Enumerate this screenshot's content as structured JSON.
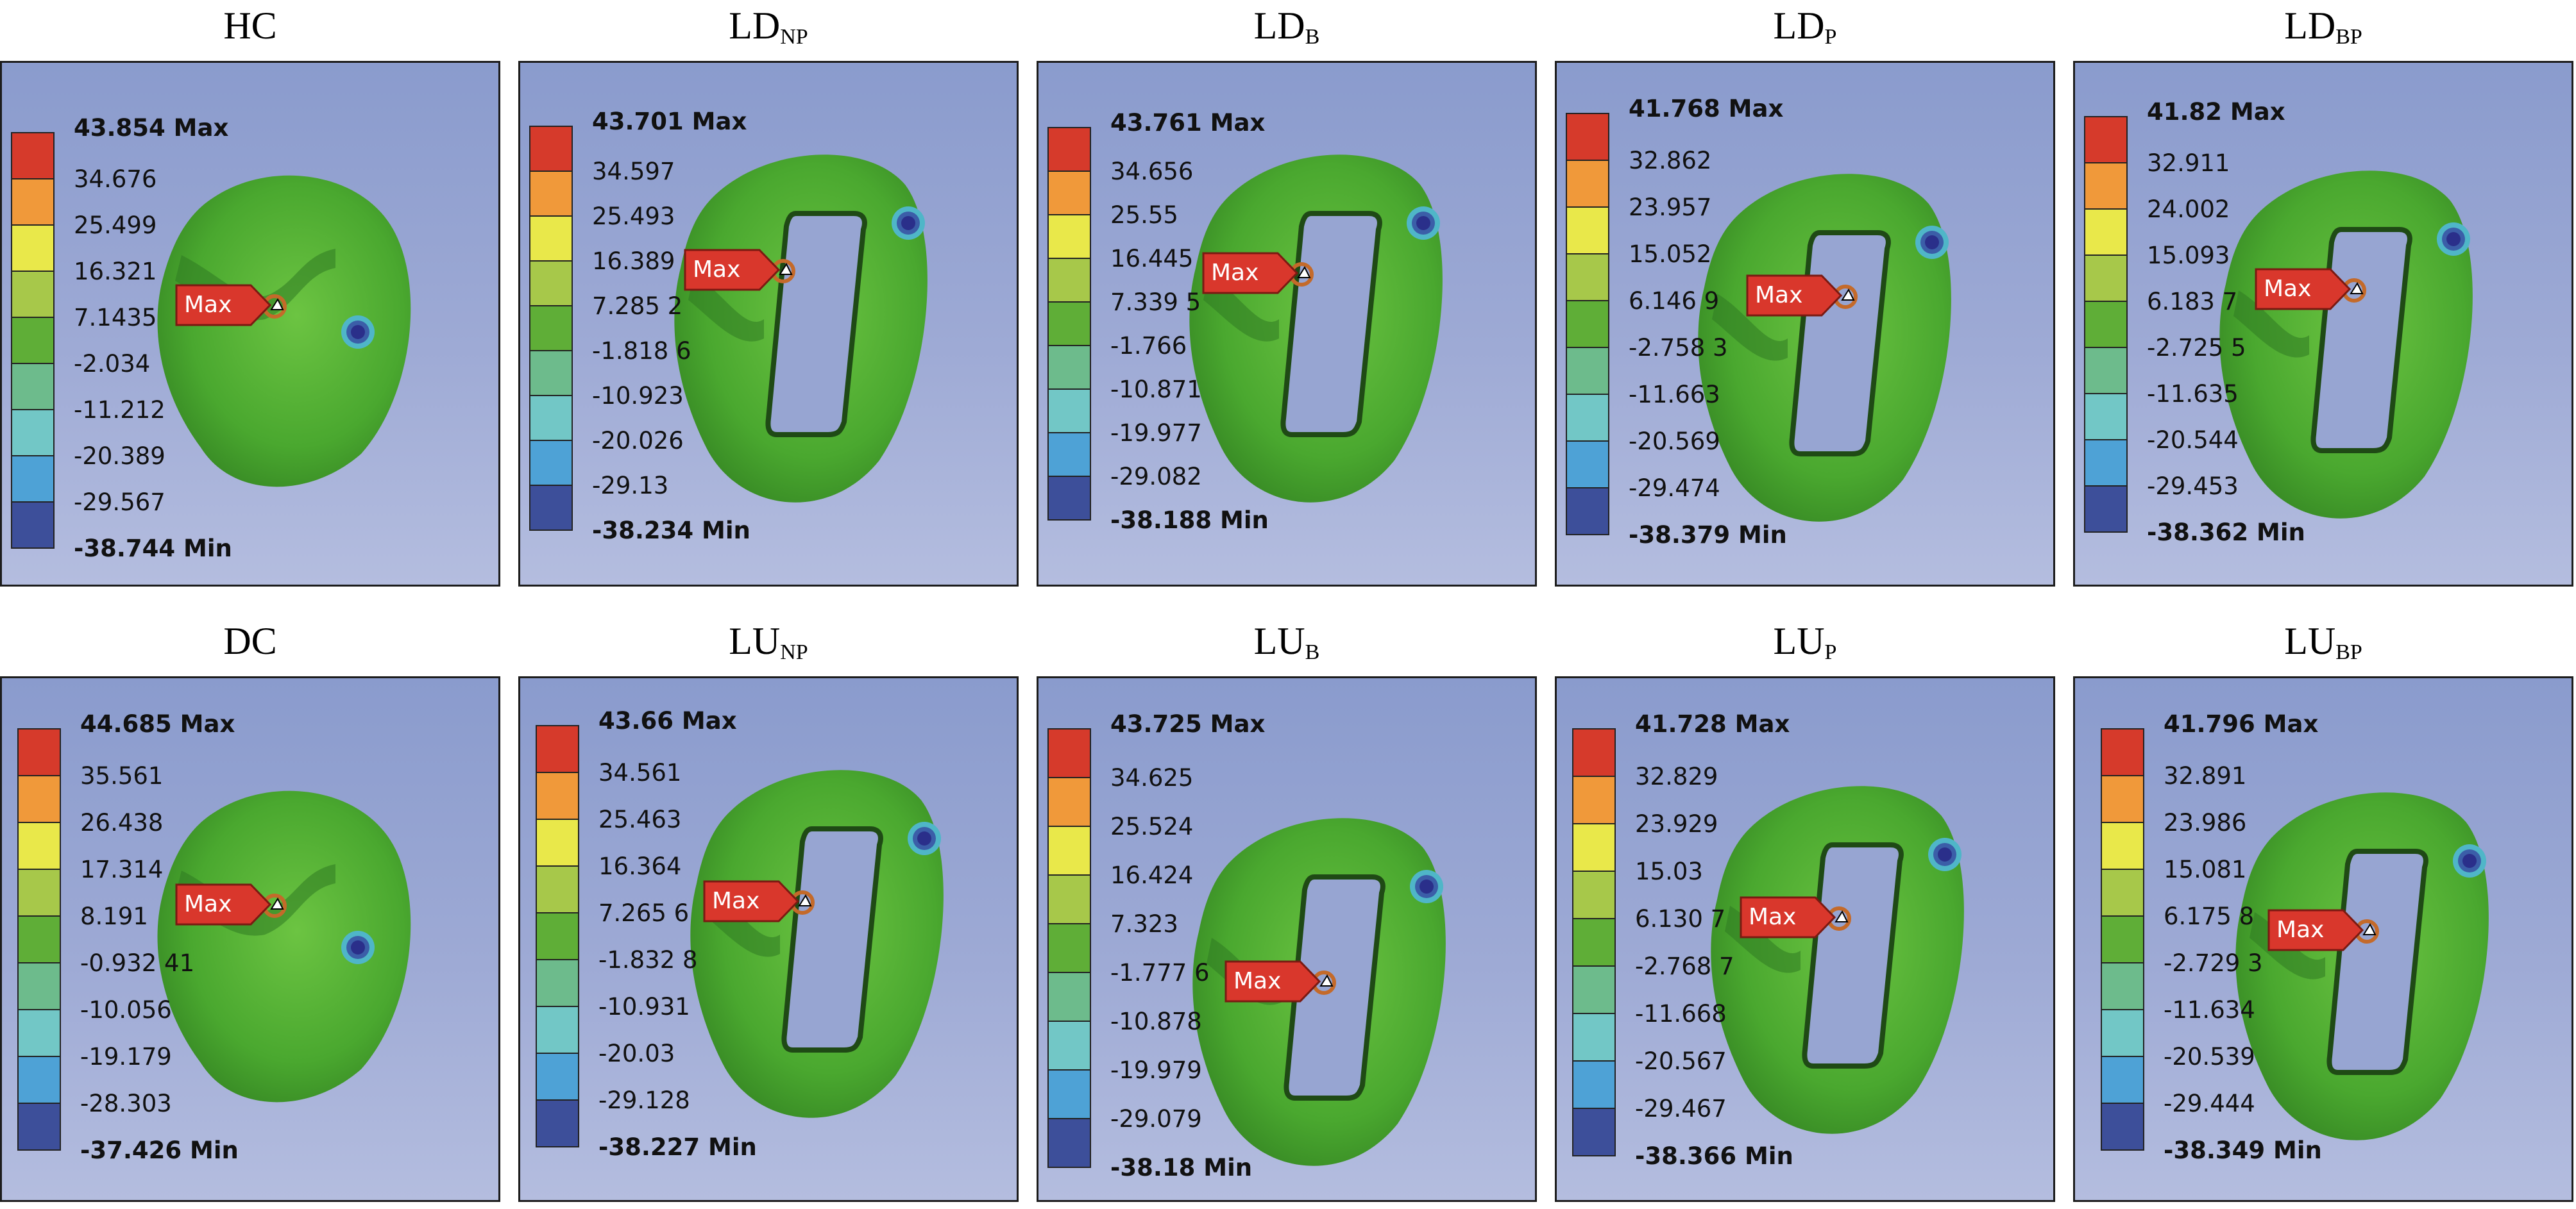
{
  "colors": {
    "panel_background": "#95a5d3",
    "body_green": "#4fae31",
    "max_tag": "#d9372c",
    "scale": [
      "#d63a2b",
      "#f0993a",
      "#e9e84a",
      "#a7c84a",
      "#5fae37",
      "#6dbb8c",
      "#72c7c6",
      "#4ea2d6",
      "#3d4f9a"
    ]
  },
  "panels": [
    {
      "title": "HC",
      "subscript": "",
      "hole": false,
      "legend": [
        "43.854 Max",
        "34.676",
        "25.499",
        "16.321",
        "7.1435",
        "-2.034",
        "-11.212",
        "-20.389",
        "-29.567",
        "-38.744 Min"
      ],
      "max_label": "Max"
    },
    {
      "title": "LD",
      "subscript": "NP",
      "hole": true,
      "legend": [
        "43.701 Max",
        "34.597",
        "25.493",
        "16.389",
        "7.285 2",
        "-1.818 6",
        "-10.923",
        "-20.026",
        "-29.13",
        "-38.234 Min"
      ],
      "max_label": "Max"
    },
    {
      "title": "LD",
      "subscript": "B",
      "hole": true,
      "legend": [
        "43.761 Max",
        "34.656",
        "25.55",
        "16.445",
        "7.339 5",
        "-1.766",
        "-10.871",
        "-19.977",
        "-29.082",
        "-38.188 Min"
      ],
      "max_label": "Max"
    },
    {
      "title": "LD",
      "subscript": "P",
      "hole": true,
      "legend": [
        "41.768 Max",
        "32.862",
        "23.957",
        "15.052",
        "6.146 9",
        "-2.758 3",
        "-11.663",
        "-20.569",
        "-29.474",
        "-38.379 Min"
      ],
      "max_label": "Max"
    },
    {
      "title": "LD",
      "subscript": "BP",
      "hole": true,
      "legend": [
        "41.82 Max",
        "32.911",
        "24.002",
        "15.093",
        "6.183 7",
        "-2.725 5",
        "-11.635",
        "-20.544",
        "-29.453",
        "-38.362 Min"
      ],
      "max_label": "Max"
    },
    {
      "title": "DC",
      "subscript": "",
      "hole": false,
      "legend": [
        "44.685 Max",
        "35.561",
        "26.438",
        "17.314",
        "8.191",
        "-0.932 41",
        "-10.056",
        "-19.179",
        "-28.303",
        "-37.426 Min"
      ],
      "max_label": "Max"
    },
    {
      "title": "LU",
      "subscript": "NP",
      "hole": true,
      "legend": [
        "43.66 Max",
        "34.561",
        "25.463",
        "16.364",
        "7.265 6",
        "-1.832 8",
        "-10.931",
        "-20.03",
        "-29.128",
        "-38.227 Min"
      ],
      "max_label": "Max"
    },
    {
      "title": "LU",
      "subscript": "B",
      "hole": true,
      "legend": [
        "43.725 Max",
        "34.625",
        "25.524",
        "16.424",
        "7.323",
        "-1.777 6",
        "-10.878",
        "-19.979",
        "-29.079",
        "-38.18 Min"
      ],
      "max_label": "Max"
    },
    {
      "title": "LU",
      "subscript": "P",
      "hole": true,
      "legend": [
        "41.728 Max",
        "32.829",
        "23.929",
        "15.03",
        "6.130 7",
        "-2.768 7",
        "-11.668",
        "-20.567",
        "-29.467",
        "-38.366 Min"
      ],
      "max_label": "Max"
    },
    {
      "title": "LU",
      "subscript": "BP",
      "hole": true,
      "legend": [
        "41.796 Max",
        "32.891",
        "23.986",
        "15.081",
        "6.175 8",
        "-2.729 3",
        "-11.634",
        "-20.539",
        "-29.444",
        "-38.349 Min"
      ],
      "max_label": "Max"
    }
  ]
}
